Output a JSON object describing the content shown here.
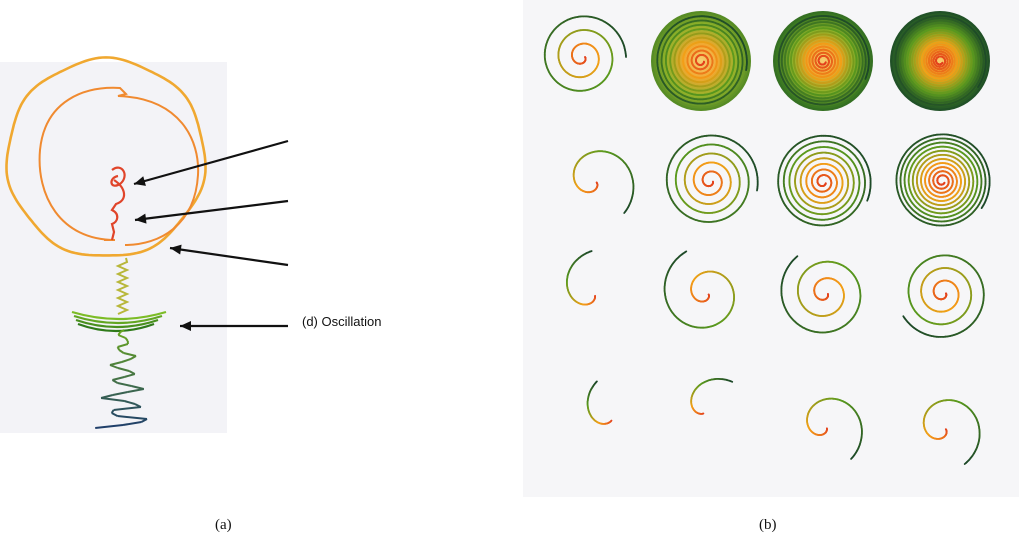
{
  "panel_a": {
    "caption": "(a)",
    "annotations": [
      {
        "label": ""
      },
      {
        "label": ""
      },
      {
        "label": ""
      },
      {
        "label": "(d) Oscillation"
      }
    ]
  },
  "panel_b": {
    "caption": "(b)",
    "grid": {
      "rows": 4,
      "cols": 4
    }
  },
  "colors": {
    "outer_ring": "#f0a830",
    "inner_spiral": "#f08a30",
    "core": "#e0442a",
    "osc_light": "#6aa820",
    "osc_dark": "#1e3d6b",
    "disk_dark": "#123a2a",
    "spiral_mid": "#5a9a1e",
    "spiral_warm": "#f3a018",
    "spiral_center": "#e33f1f",
    "panel_b_bg": "#f6f6f8",
    "panel_a_bg": "#f3f3f7"
  }
}
